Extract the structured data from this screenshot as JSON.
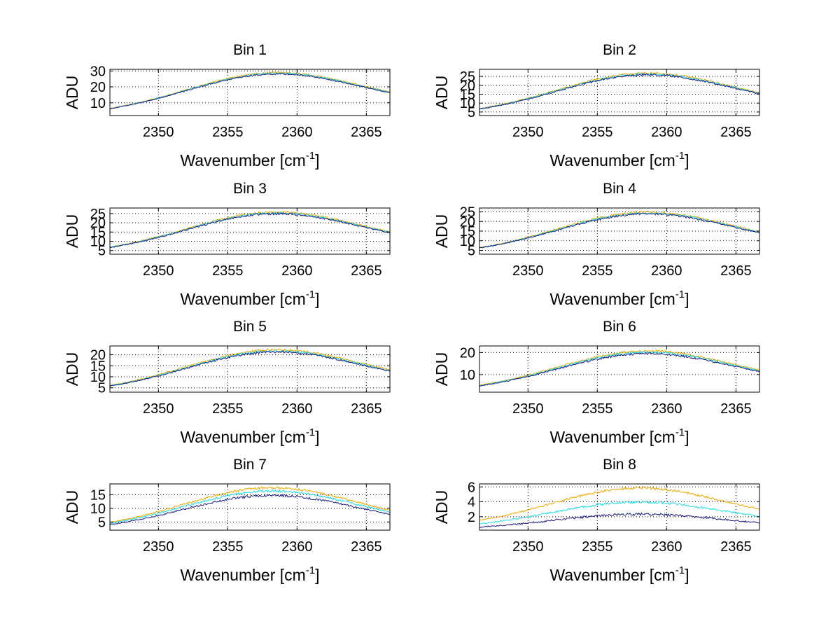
{
  "figure": {
    "background": "#ffffff",
    "series_colors": [
      "#e6a700",
      "#1ed8e0",
      "#1a1a7a"
    ]
  },
  "chart_data": [
    {
      "type": "line",
      "title": "Bin 1",
      "xlabel": "Wavenumber [cm",
      "xlabel_sup": "-1",
      "xlabel_close": "]",
      "ylabel": "ADU",
      "xlim": [
        2346.5,
        2366.7
      ],
      "ylim": [
        2,
        31
      ],
      "xticks": [
        2350,
        2355,
        2360,
        2365
      ],
      "yticks": [
        10,
        20,
        30
      ],
      "grid": true,
      "peak": 28.5,
      "base_left": 2.6,
      "base_right": 7.8,
      "center": 2358.2,
      "noise": 0.35,
      "series_scale": [
        1.0,
        0.985,
        0.97
      ]
    },
    {
      "type": "line",
      "title": "Bin 2",
      "xlabel": "Wavenumber [cm",
      "xlabel_sup": "-1",
      "xlabel_close": "]",
      "ylabel": "ADU",
      "xlim": [
        2346.5,
        2366.7
      ],
      "ylim": [
        3,
        29
      ],
      "xticks": [
        2350,
        2355,
        2360,
        2365
      ],
      "yticks": [
        5,
        10,
        15,
        20,
        25
      ],
      "grid": true,
      "peak": 26.5,
      "base_left": 3.5,
      "base_right": 7.5,
      "center": 2358.3,
      "noise": 0.4,
      "series_scale": [
        1.0,
        0.98,
        0.965
      ]
    },
    {
      "type": "line",
      "title": "Bin 3",
      "xlabel": "Wavenumber [cm",
      "xlabel_sup": "-1",
      "xlabel_close": "]",
      "ylabel": "ADU",
      "xlim": [
        2346.5,
        2366.7
      ],
      "ylim": [
        3,
        28
      ],
      "xticks": [
        2350,
        2355,
        2360,
        2365
      ],
      "yticks": [
        5,
        10,
        15,
        20,
        25
      ],
      "grid": true,
      "peak": 25.5,
      "base_left": 3.5,
      "base_right": 7.3,
      "center": 2358.2,
      "noise": 0.4,
      "series_scale": [
        1.0,
        0.98,
        0.965
      ]
    },
    {
      "type": "line",
      "title": "Bin 4",
      "xlabel": "Wavenumber [cm",
      "xlabel_sup": "-1",
      "xlabel_close": "]",
      "ylabel": "ADU",
      "xlim": [
        2346.5,
        2366.7
      ],
      "ylim": [
        3,
        27
      ],
      "xticks": [
        2350,
        2355,
        2360,
        2365
      ],
      "yticks": [
        5,
        10,
        15,
        20,
        25
      ],
      "grid": true,
      "peak": 24.5,
      "base_left": 3.3,
      "base_right": 7.0,
      "center": 2358.3,
      "noise": 0.38,
      "series_scale": [
        1.0,
        0.98,
        0.965
      ]
    },
    {
      "type": "line",
      "title": "Bin 5",
      "xlabel": "Wavenumber [cm",
      "xlabel_sup": "-1",
      "xlabel_close": "]",
      "ylabel": "ADU",
      "xlim": [
        2346.5,
        2366.7
      ],
      "ylim": [
        3,
        24
      ],
      "xticks": [
        2350,
        2355,
        2360,
        2365
      ],
      "yticks": [
        5,
        10,
        15,
        20
      ],
      "grid": true,
      "peak": 22.0,
      "base_left": 3.2,
      "base_right": 6.5,
      "center": 2358.2,
      "noise": 0.35,
      "series_scale": [
        1.0,
        0.975,
        0.955
      ]
    },
    {
      "type": "line",
      "title": "Bin 6",
      "xlabel": "Wavenumber [cm",
      "xlabel_sup": "-1",
      "xlabel_close": "]",
      "ylabel": "ADU",
      "xlim": [
        2346.5,
        2366.7
      ],
      "ylim": [
        2,
        23
      ],
      "xticks": [
        2350,
        2355,
        2360,
        2365
      ],
      "yticks": [
        10,
        20
      ],
      "grid": true,
      "peak": 20.5,
      "base_left": 2.5,
      "base_right": 5.5,
      "center": 2358.3,
      "noise": 0.35,
      "series_scale": [
        1.0,
        0.97,
        0.94
      ]
    },
    {
      "type": "line",
      "title": "Bin 7",
      "xlabel": "Wavenumber [cm",
      "xlabel_sup": "-1",
      "xlabel_close": "]",
      "ylabel": "ADU",
      "xlim": [
        2346.5,
        2366.7
      ],
      "ylim": [
        2,
        19
      ],
      "xticks": [
        2350,
        2355,
        2360,
        2365
      ],
      "yticks": [
        5,
        10,
        15
      ],
      "grid": true,
      "peak": 17.5,
      "base_left": 2.3,
      "base_right": 4.0,
      "center": 2358.0,
      "noise": 0.3,
      "series_scale": [
        1.0,
        0.93,
        0.84
      ]
    },
    {
      "type": "line",
      "title": "Bin 8",
      "xlabel": "Wavenumber [cm",
      "xlabel_sup": "-1",
      "xlabel_close": "]",
      "ylabel": "ADU",
      "xlim": [
        2346.5,
        2366.7
      ],
      "ylim": [
        0.2,
        6.4
      ],
      "xticks": [
        2350,
        2355,
        2360,
        2365
      ],
      "yticks": [
        2,
        4,
        6
      ],
      "grid": true,
      "peak": 5.8,
      "base_left": 0.6,
      "base_right": 1.3,
      "center": 2357.8,
      "noise": 0.12,
      "series_scale": [
        1.0,
        0.68,
        0.4
      ]
    }
  ]
}
